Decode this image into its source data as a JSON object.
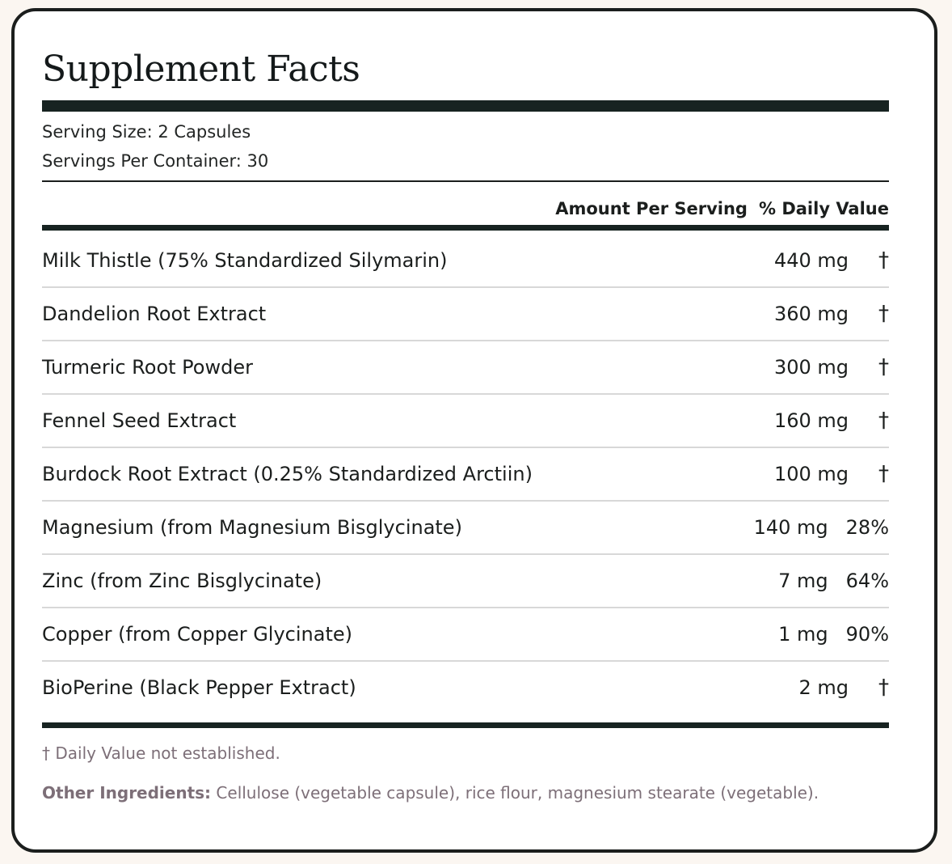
{
  "label": {
    "title": "Supplement Facts",
    "serving_size": "Serving Size: 2 Capsules",
    "servings_per_container": "Servings Per Container: 30",
    "column_amount": "Amount Per Serving",
    "column_daily_value": "% Daily Value",
    "ingredients": [
      {
        "name": "Milk Thistle (75% Standardized Silymarin)",
        "amount": "440 mg",
        "daily_value": "†"
      },
      {
        "name": "Dandelion Root Extract",
        "amount": "360 mg",
        "daily_value": "†"
      },
      {
        "name": "Turmeric Root Powder",
        "amount": "300 mg",
        "daily_value": "†"
      },
      {
        "name": "Fennel Seed Extract",
        "amount": "160 mg",
        "daily_value": "†"
      },
      {
        "name": "Burdock Root Extract (0.25% Standardized Arctiin)",
        "amount": "100 mg",
        "daily_value": "†"
      },
      {
        "name": "Magnesium (from Magnesium Bisglycinate)",
        "amount": "140 mg",
        "daily_value": "28%"
      },
      {
        "name": "Zinc (from Zinc Bisglycinate)",
        "amount": "7 mg",
        "daily_value": "64%"
      },
      {
        "name": "Copper (from Copper Glycinate)",
        "amount": "1 mg",
        "daily_value": "90%"
      },
      {
        "name": "BioPerine (Black Pepper Extract)",
        "amount": "2 mg",
        "daily_value": "†"
      }
    ],
    "footnote": "† Daily Value not established.",
    "other_ingredients_label": "Other Ingredients:",
    "other_ingredients_text": "Cellulose (vegetable capsule), rice flour, magnesium stearate (vegetable)."
  },
  "colors": {
    "page_background": "#fbf6f1",
    "panel_background": "#ffffff",
    "ink": "#1b1e1d",
    "bar": "#172321",
    "muted_text": "#7d6f78",
    "row_divider": "#d8d8d8"
  }
}
